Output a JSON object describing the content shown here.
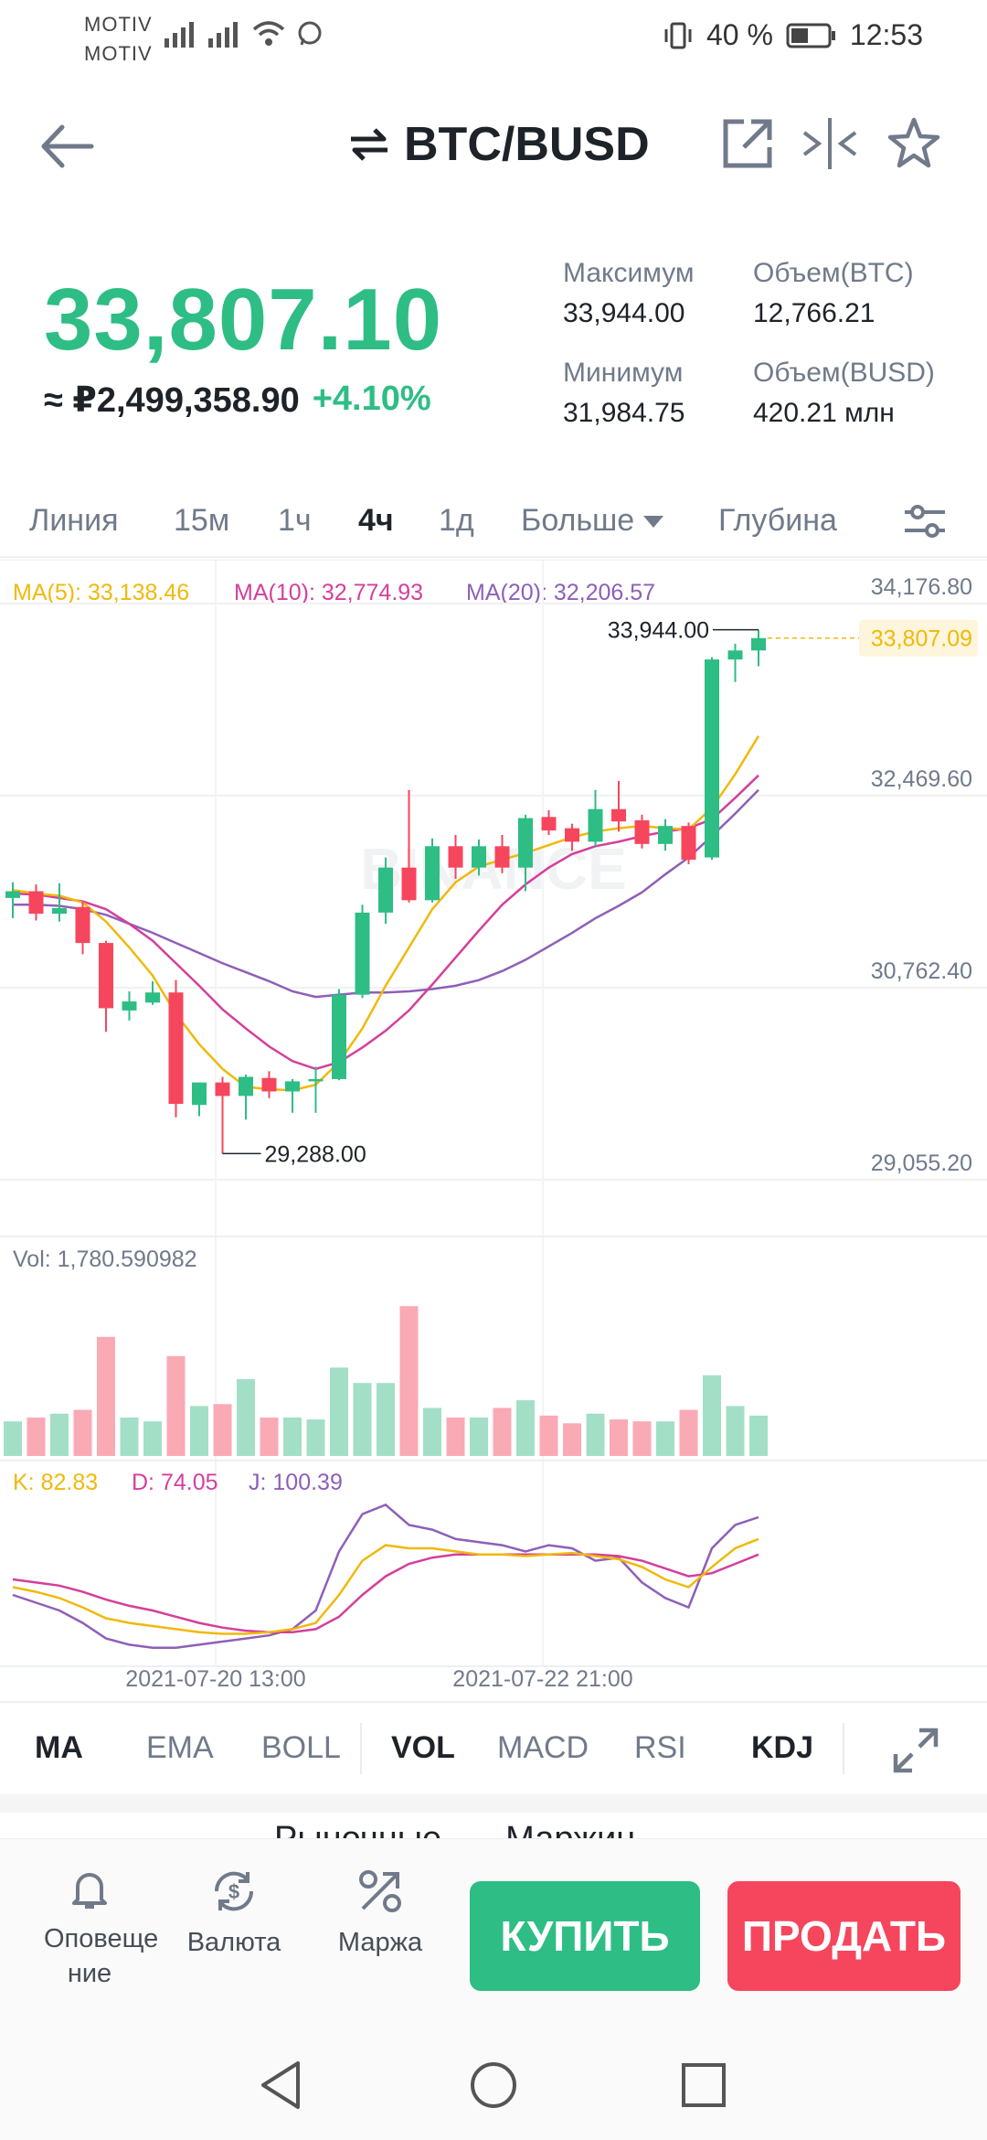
{
  "status_bar": {
    "carrier1": "MOTIV",
    "carrier2": "MOTIV",
    "battery": "40 %",
    "time": "12:53"
  },
  "header": {
    "title": "BTC/BUSD",
    "icons": [
      "back-arrow-icon",
      "swap-icon",
      "open-external-icon",
      "compare-icon",
      "star-icon"
    ]
  },
  "ticker": {
    "price": "33,807.10",
    "fiat": "≈ ₽2,499,358.90",
    "change": "+4.10%",
    "high_label": "Максимум",
    "high_value": "33,944.00",
    "low_label": "Минимум",
    "low_value": "31,984.75",
    "vol_base_label": "Объем(BTC)",
    "vol_base_value": "12,766.21",
    "vol_quote_label": "Объем(BUSD)",
    "vol_quote_value": "420.21 млн"
  },
  "interval_tabs": {
    "line": "Линия",
    "m15": "15м",
    "h1": "1ч",
    "h4": "4ч",
    "d1": "1д",
    "more": "Больше",
    "depth": "Глубина",
    "selected": "4ч"
  },
  "chart_data": {
    "type": "candlestick",
    "ma_legend": {
      "ma5": "MA(5): 33,138.46",
      "ma10": "MA(10): 32,774.93",
      "ma20": "MA(20): 32,206.57"
    },
    "y_ticks": [
      "34,176.80",
      "32,469.60",
      "30,762.40",
      "29,055.20"
    ],
    "ylim": [
      29055.2,
      34176.8
    ],
    "high_marker": "33,944.00",
    "low_marker": "29,288.00",
    "last_price_tag": "33,807.09",
    "candles": [
      {
        "o": 31560,
        "h": 31700,
        "l": 31380,
        "c": 31620
      },
      {
        "o": 31620,
        "h": 31680,
        "l": 31360,
        "c": 31420
      },
      {
        "o": 31420,
        "h": 31690,
        "l": 31350,
        "c": 31470
      },
      {
        "o": 31480,
        "h": 31530,
        "l": 31060,
        "c": 31160
      },
      {
        "o": 31160,
        "h": 31180,
        "l": 30370,
        "c": 30580
      },
      {
        "o": 30560,
        "h": 30730,
        "l": 30470,
        "c": 30640
      },
      {
        "o": 30630,
        "h": 30820,
        "l": 30610,
        "c": 30720
      },
      {
        "o": 30720,
        "h": 30830,
        "l": 29610,
        "c": 29730
      },
      {
        "o": 29720,
        "h": 29920,
        "l": 29620,
        "c": 29920
      },
      {
        "o": 29920,
        "h": 29970,
        "l": 29288,
        "c": 29800
      },
      {
        "o": 29800,
        "h": 29990,
        "l": 29590,
        "c": 29970
      },
      {
        "o": 29960,
        "h": 30020,
        "l": 29780,
        "c": 29840
      },
      {
        "o": 29840,
        "h": 29950,
        "l": 29650,
        "c": 29930
      },
      {
        "o": 29930,
        "h": 30060,
        "l": 29650,
        "c": 29950
      },
      {
        "o": 29950,
        "h": 30750,
        "l": 29940,
        "c": 30700
      },
      {
        "o": 30700,
        "h": 31500,
        "l": 30670,
        "c": 31430
      },
      {
        "o": 31430,
        "h": 31920,
        "l": 31330,
        "c": 31830
      },
      {
        "o": 31830,
        "h": 32520,
        "l": 31520,
        "c": 31540
      },
      {
        "o": 31540,
        "h": 32090,
        "l": 31520,
        "c": 32020
      },
      {
        "o": 32020,
        "h": 32120,
        "l": 31730,
        "c": 31830
      },
      {
        "o": 31830,
        "h": 32080,
        "l": 31760,
        "c": 32020
      },
      {
        "o": 32020,
        "h": 32120,
        "l": 31780,
        "c": 31830
      },
      {
        "o": 31830,
        "h": 32300,
        "l": 31620,
        "c": 32270
      },
      {
        "o": 32280,
        "h": 32340,
        "l": 32120,
        "c": 32160
      },
      {
        "o": 32180,
        "h": 32220,
        "l": 31980,
        "c": 32060
      },
      {
        "o": 32060,
        "h": 32520,
        "l": 32020,
        "c": 32350
      },
      {
        "o": 32350,
        "h": 32600,
        "l": 32150,
        "c": 32240
      },
      {
        "o": 32250,
        "h": 32300,
        "l": 32000,
        "c": 32040
      },
      {
        "o": 32040,
        "h": 32260,
        "l": 31980,
        "c": 32200
      },
      {
        "o": 32200,
        "h": 32230,
        "l": 31860,
        "c": 31900
      },
      {
        "o": 31920,
        "h": 33700,
        "l": 31900,
        "c": 33680
      },
      {
        "o": 33680,
        "h": 33820,
        "l": 33480,
        "c": 33760
      },
      {
        "o": 33760,
        "h": 33944,
        "l": 33620,
        "c": 33870
      }
    ],
    "ma5": [
      31630,
      31600,
      31580,
      31520,
      31350,
      31120,
      30870,
      30530,
      30260,
      30040,
      29880,
      29860,
      29850,
      29900,
      30100,
      30400,
      30780,
      31120,
      31460,
      31700,
      31840,
      31900,
      31960,
      32030,
      32100,
      32150,
      32180,
      32200,
      32180,
      32170,
      32360,
      32660,
      33000
    ],
    "ma10": [
      31600,
      31590,
      31560,
      31530,
      31460,
      31330,
      31180,
      30980,
      30780,
      30570,
      30400,
      30240,
      30110,
      30040,
      30100,
      30230,
      30380,
      30560,
      30790,
      31030,
      31270,
      31500,
      31680,
      31830,
      31950,
      32020,
      32060,
      32110,
      32150,
      32180,
      32260,
      32450,
      32650
    ],
    "ma20": [
      31500,
      31500,
      31490,
      31460,
      31410,
      31330,
      31250,
      31160,
      31070,
      30980,
      30900,
      30820,
      30730,
      30680,
      30700,
      30720,
      30720,
      30730,
      30750,
      30780,
      30830,
      30910,
      31010,
      31130,
      31250,
      31380,
      31490,
      31610,
      31770,
      31920,
      32110,
      32310,
      32520
    ],
    "volume_label": "Vol: 1,780.590982",
    "volumes": [
      0.18,
      0.2,
      0.22,
      0.24,
      0.62,
      0.2,
      0.18,
      0.52,
      0.26,
      0.27,
      0.4,
      0.2,
      0.2,
      0.19,
      0.46,
      0.38,
      0.38,
      0.78,
      0.25,
      0.2,
      0.2,
      0.25,
      0.29,
      0.21,
      0.17,
      0.22,
      0.19,
      0.18,
      0.18,
      0.24,
      0.42,
      0.26,
      0.21
    ],
    "kdj_legend": {
      "k": "K: 82.83",
      "d": "D: 74.05",
      "j": "J: 100.39"
    },
    "k_line": [
      45,
      42,
      38,
      32,
      25,
      22,
      20,
      18,
      16,
      15,
      15,
      16,
      18,
      22,
      40,
      62,
      72,
      70,
      70,
      68,
      66,
      66,
      65,
      66,
      67,
      65,
      63,
      58,
      50,
      45,
      58,
      70,
      76
    ],
    "d_line": [
      50,
      48,
      46,
      42,
      37,
      33,
      30,
      26,
      22,
      19,
      17,
      16,
      16,
      18,
      26,
      40,
      52,
      60,
      64,
      66,
      66,
      66,
      66,
      66,
      66,
      66,
      65,
      62,
      57,
      52,
      54,
      60,
      66
    ],
    "j_line": [
      40,
      35,
      30,
      22,
      12,
      8,
      6,
      6,
      8,
      10,
      12,
      14,
      18,
      30,
      68,
      92,
      98,
      85,
      82,
      76,
      74,
      72,
      68,
      72,
      70,
      62,
      64,
      48,
      38,
      32,
      70,
      85,
      90
    ],
    "x_labels": [
      "2021-07-20 13:00",
      "2021-07-22 21:00"
    ],
    "watermark": "BINANCE"
  },
  "indicators": {
    "ma": "MA",
    "ema": "EMA",
    "boll": "BOLL",
    "vol": "VOL",
    "macd": "MACD",
    "rsi": "RSI",
    "kdj": "KDJ"
  },
  "peek_tabs": [
    "Рыночные",
    "Маржин"
  ],
  "actions": {
    "alert": "Оповеще ние",
    "currency": "Валюта",
    "margin": "Маржа",
    "buy": "КУПИТЬ",
    "sell": "ПРОДАТЬ"
  },
  "colors": {
    "up": "#2ebd85",
    "down": "#f6465d",
    "ma5": "#f0b90b",
    "ma10": "#d43f9c",
    "ma20": "#8e5fb8"
  }
}
